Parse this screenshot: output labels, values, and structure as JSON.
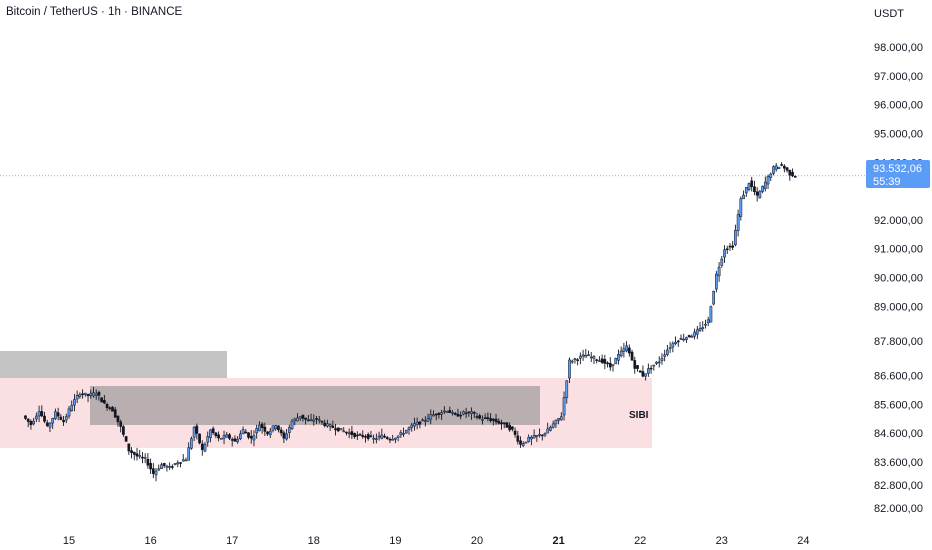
{
  "header": {
    "title": "Bitcoin / TetherUS · 1h · BINANCE",
    "currency": "USDT"
  },
  "current_price": {
    "price_label": "93.532,06",
    "countdown": "55:39",
    "value": 93532.06,
    "color": "#5b9cf6"
  },
  "zones": {
    "sibi_label": "SIBI",
    "sibi_color": "#fbe0e3",
    "gray_color": "#b0b0b0"
  },
  "chart_data": {
    "type": "candlestick",
    "title": "Bitcoin / TetherUS · 1h · BINANCE",
    "xlabel": "",
    "ylabel": "USDT",
    "ylim": [
      81800,
      98600
    ],
    "grid": false,
    "x_ticks": [
      "15",
      "16",
      "17",
      "18",
      "19",
      "20",
      "21",
      "22",
      "23",
      "24"
    ],
    "bold_x_tick": "21",
    "y_ticks": [
      {
        "value": 98000,
        "label": "98.000,00"
      },
      {
        "value": 97000,
        "label": "97.000,00"
      },
      {
        "value": 96000,
        "label": "96.000,00"
      },
      {
        "value": 95000,
        "label": "95.000,00"
      },
      {
        "value": 94000,
        "label": "94.000,00"
      },
      {
        "value": 92000,
        "label": "92.000,00"
      },
      {
        "value": 91000,
        "label": "91.000,00"
      },
      {
        "value": 90000,
        "label": "90.000,00"
      },
      {
        "value": 89000,
        "label": "89.000,00"
      },
      {
        "value": 87800,
        "label": "87.800,00"
      },
      {
        "value": 86600,
        "label": "86.600,00"
      },
      {
        "value": 85600,
        "label": "85.600,00"
      },
      {
        "value": 84600,
        "label": "84.600,00"
      },
      {
        "value": 83600,
        "label": "83.600,00"
      },
      {
        "value": 82800,
        "label": "82.800,00"
      },
      {
        "value": 82000,
        "label": "82.000,00"
      }
    ],
    "price_path": [
      [
        14.45,
        85200
      ],
      [
        14.55,
        84900
      ],
      [
        14.65,
        85400
      ],
      [
        14.75,
        84800
      ],
      [
        14.85,
        85300
      ],
      [
        14.95,
        85000
      ],
      [
        15.05,
        85600
      ],
      [
        15.15,
        86000
      ],
      [
        15.25,
        85900
      ],
      [
        15.35,
        86000
      ],
      [
        15.45,
        85600
      ],
      [
        15.55,
        85400
      ],
      [
        15.65,
        84800
      ],
      [
        15.75,
        84000
      ],
      [
        15.85,
        83800
      ],
      [
        15.95,
        83700
      ],
      [
        16.05,
        83200
      ],
      [
        16.15,
        83500
      ],
      [
        16.25,
        83400
      ],
      [
        16.35,
        83600
      ],
      [
        16.45,
        83700
      ],
      [
        16.55,
        84800
      ],
      [
        16.65,
        84000
      ],
      [
        16.75,
        84700
      ],
      [
        16.85,
        84400
      ],
      [
        16.95,
        84500
      ],
      [
        17.05,
        84300
      ],
      [
        17.15,
        84700
      ],
      [
        17.25,
        84400
      ],
      [
        17.35,
        84900
      ],
      [
        17.45,
        84600
      ],
      [
        17.55,
        84900
      ],
      [
        17.65,
        84400
      ],
      [
        17.75,
        85000
      ],
      [
        17.85,
        85200
      ],
      [
        17.95,
        85000
      ],
      [
        18.05,
        85100
      ],
      [
        18.15,
        84900
      ],
      [
        18.25,
        84800
      ],
      [
        18.35,
        84700
      ],
      [
        18.45,
        84600
      ],
      [
        18.55,
        84500
      ],
      [
        18.65,
        84500
      ],
      [
        18.75,
        84400
      ],
      [
        18.85,
        84500
      ],
      [
        18.95,
        84400
      ],
      [
        19.05,
        84500
      ],
      [
        19.15,
        84700
      ],
      [
        19.25,
        84900
      ],
      [
        19.35,
        85000
      ],
      [
        19.45,
        85200
      ],
      [
        19.55,
        85300
      ],
      [
        19.65,
        85400
      ],
      [
        19.75,
        85200
      ],
      [
        19.85,
        85300
      ],
      [
        19.95,
        85300
      ],
      [
        20.05,
        85100
      ],
      [
        20.15,
        85100
      ],
      [
        20.25,
        85000
      ],
      [
        20.35,
        84900
      ],
      [
        20.45,
        84700
      ],
      [
        20.55,
        84200
      ],
      [
        20.65,
        84400
      ],
      [
        20.75,
        84500
      ],
      [
        20.85,
        84600
      ],
      [
        20.95,
        84900
      ],
      [
        21.05,
        85200
      ],
      [
        21.15,
        87100
      ],
      [
        21.25,
        87200
      ],
      [
        21.35,
        87300
      ],
      [
        21.45,
        87200
      ],
      [
        21.55,
        87100
      ],
      [
        21.65,
        86900
      ],
      [
        21.75,
        87300
      ],
      [
        21.85,
        87600
      ],
      [
        21.95,
        86900
      ],
      [
        22.05,
        86600
      ],
      [
        22.15,
        86900
      ],
      [
        22.25,
        87100
      ],
      [
        22.35,
        87500
      ],
      [
        22.45,
        87800
      ],
      [
        22.55,
        87900
      ],
      [
        22.65,
        88000
      ],
      [
        22.75,
        88200
      ],
      [
        22.85,
        88500
      ],
      [
        22.95,
        90100
      ],
      [
        23.05,
        91000
      ],
      [
        23.15,
        91100
      ],
      [
        23.25,
        92700
      ],
      [
        23.35,
        93300
      ],
      [
        23.45,
        92800
      ],
      [
        23.55,
        93300
      ],
      [
        23.65,
        93800
      ],
      [
        23.75,
        93900
      ],
      [
        23.85,
        93600
      ],
      [
        23.95,
        93500
      ],
      [
        24.05,
        93400
      ],
      [
        24.15,
        93200
      ],
      [
        24.25,
        92900
      ],
      [
        24.35,
        93600
      ],
      [
        24.45,
        93532
      ]
    ]
  }
}
